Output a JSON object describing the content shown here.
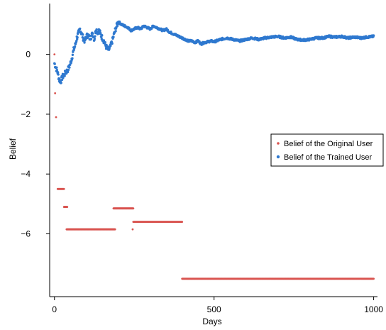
{
  "chart_data": {
    "type": "scatter",
    "xlabel": "Days",
    "ylabel": "Belief",
    "xlim": [
      -15,
      1012
    ],
    "ylim": [
      -8.1,
      1.7
    ],
    "x_ticks": [
      0,
      500,
      1000
    ],
    "x_tick_labels": [
      "0",
      "500",
      "1000"
    ],
    "y_ticks": [
      0,
      -2,
      -4,
      -6
    ],
    "y_tick_labels": [
      "0",
      "−2",
      "−4",
      "−6"
    ],
    "grid": false,
    "legend_position": "right",
    "series": [
      {
        "name": "Belief of the Original User",
        "color": "#d9534f",
        "isolated_points": [
          [
            0,
            0.0
          ],
          [
            2,
            -1.3
          ],
          [
            5,
            -2.1
          ],
          [
            245,
            -5.85
          ]
        ],
        "segments": [
          {
            "x_start": 10,
            "x_end": 30,
            "y": -4.5
          },
          {
            "x_start": 30,
            "x_end": 40,
            "y": -5.1
          },
          {
            "x_start": 38,
            "x_end": 190,
            "y": -5.85
          },
          {
            "x_start": 185,
            "x_end": 247,
            "y": -5.15
          },
          {
            "x_start": 247,
            "x_end": 400,
            "y": -5.6
          },
          {
            "x_start": 400,
            "x_end": 1000,
            "y": -7.5
          }
        ]
      },
      {
        "name": "Belief of the Trained User",
        "color": "#2e78cf",
        "keypoints": [
          [
            0,
            -0.3
          ],
          [
            5,
            -0.45
          ],
          [
            10,
            -0.6
          ],
          [
            15,
            -0.85
          ],
          [
            20,
            -0.9
          ],
          [
            25,
            -0.75
          ],
          [
            30,
            -0.7
          ],
          [
            35,
            -0.6
          ],
          [
            40,
            -0.55
          ],
          [
            45,
            -0.45
          ],
          [
            50,
            -0.3
          ],
          [
            55,
            -0.1
          ],
          [
            60,
            0.15
          ],
          [
            65,
            0.3
          ],
          [
            70,
            0.55
          ],
          [
            75,
            0.7
          ],
          [
            80,
            0.85
          ],
          [
            85,
            0.7
          ],
          [
            90,
            0.55
          ],
          [
            95,
            0.45
          ],
          [
            100,
            0.6
          ],
          [
            105,
            0.65
          ],
          [
            110,
            0.55
          ],
          [
            115,
            0.6
          ],
          [
            120,
            0.7
          ],
          [
            125,
            0.5
          ],
          [
            130,
            0.85
          ],
          [
            135,
            0.75
          ],
          [
            140,
            0.8
          ],
          [
            145,
            0.65
          ],
          [
            150,
            0.55
          ],
          [
            155,
            0.45
          ],
          [
            160,
            0.3
          ],
          [
            165,
            0.2
          ],
          [
            170,
            0.15
          ],
          [
            175,
            0.25
          ],
          [
            180,
            0.4
          ],
          [
            185,
            0.6
          ],
          [
            190,
            0.8
          ],
          [
            195,
            0.95
          ],
          [
            200,
            1.1
          ],
          [
            205,
            1.05
          ],
          [
            210,
            1.0
          ],
          [
            220,
            0.95
          ],
          [
            230,
            0.9
          ],
          [
            240,
            0.8
          ],
          [
            250,
            0.85
          ],
          [
            260,
            0.9
          ],
          [
            270,
            0.85
          ],
          [
            280,
            0.95
          ],
          [
            290,
            0.9
          ],
          [
            300,
            0.85
          ],
          [
            310,
            0.95
          ],
          [
            320,
            0.9
          ],
          [
            330,
            0.85
          ],
          [
            340,
            0.8
          ],
          [
            350,
            0.85
          ],
          [
            360,
            0.75
          ],
          [
            370,
            0.7
          ],
          [
            380,
            0.65
          ],
          [
            390,
            0.6
          ],
          [
            400,
            0.55
          ],
          [
            410,
            0.5
          ],
          [
            420,
            0.45
          ],
          [
            430,
            0.45
          ],
          [
            440,
            0.4
          ],
          [
            450,
            0.45
          ],
          [
            460,
            0.35
          ],
          [
            470,
            0.4
          ],
          [
            480,
            0.42
          ],
          [
            490,
            0.45
          ],
          [
            500,
            0.42
          ],
          [
            520,
            0.5
          ],
          [
            540,
            0.55
          ],
          [
            560,
            0.5
          ],
          [
            580,
            0.45
          ],
          [
            600,
            0.5
          ],
          [
            620,
            0.55
          ],
          [
            640,
            0.5
          ],
          [
            660,
            0.55
          ],
          [
            680,
            0.58
          ],
          [
            700,
            0.6
          ],
          [
            720,
            0.55
          ],
          [
            740,
            0.58
          ],
          [
            760,
            0.5
          ],
          [
            780,
            0.48
          ],
          [
            800,
            0.5
          ],
          [
            820,
            0.55
          ],
          [
            840,
            0.55
          ],
          [
            860,
            0.6
          ],
          [
            880,
            0.58
          ],
          [
            900,
            0.6
          ],
          [
            920,
            0.55
          ],
          [
            940,
            0.58
          ],
          [
            960,
            0.55
          ],
          [
            980,
            0.58
          ],
          [
            1000,
            0.6
          ]
        ]
      }
    ]
  }
}
